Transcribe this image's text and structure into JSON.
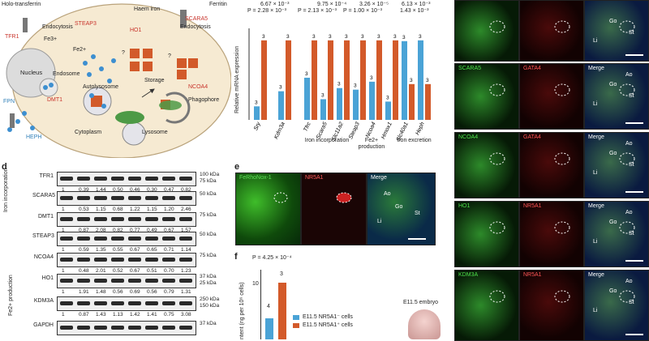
{
  "diagram": {
    "labels": {
      "holo_transferrin": "Holo-transferrin",
      "tfr1": "TFR1",
      "endocytosis_left": "Endocytosis",
      "steap3": "STEAP3",
      "fe3": "Fe3+",
      "fe2": "Fe2+",
      "haem_iron": "Haem iron",
      "ho1": "HO1",
      "scara5": "SCARA5",
      "ferritin": "Ferritin",
      "endocytosis_right": "Endocytosis",
      "nucleus": "Nucleus",
      "endosome": "Endosome",
      "dmt1": "DMT1",
      "storage": "Storage",
      "ncoa4": "NCOA4",
      "autolysosome": "Autolysosome",
      "phagophore": "Phagophore",
      "lysosome": "Lysosome",
      "cytoplasm": "Cytoplasm",
      "fpn": "FPN",
      "heph": "HEPH",
      "question": "?"
    }
  },
  "bar_chart": {
    "ylabel": "Relative mRNA expression",
    "pvalues": {
      "left": "P = 2.28 × 10⁻³",
      "left_top": "6.67 × 10⁻³",
      "mid1_top": "9.75 × 10⁻⁴",
      "mid1": "P = 2.13 × 10⁻³",
      "mid2_top": "3.26 × 10⁻⁵",
      "mid2": "P = 1.00 × 10⁻³",
      "right_top": "6.13 × 10⁻³",
      "right": "1.43 × 10⁻³"
    },
    "n_label": "3",
    "groups": {
      "iron_incorporation": "Iron incorporation",
      "fe2_production": "Fe2+ production",
      "iron_excretion": "Iron excretion"
    }
  },
  "chart_data": {
    "type": "bar",
    "categories": [
      "Sry",
      "Kdm3a",
      "Tfrc",
      "Scara5",
      "Slc11a2",
      "Steap3",
      "Ncoa4",
      "Hmox1",
      "Slc40a1",
      "Heph"
    ],
    "series": [
      {
        "values": [
          0.17,
          0.36,
          0.53,
          0.26,
          0.4,
          0.38,
          0.48,
          0.23,
          0.99,
          1.0
        ]
      },
      {
        "values": [
          1.0,
          1.0,
          1.0,
          1.0,
          1.0,
          1.0,
          1.0,
          1.0,
          0.45,
          0.45
        ]
      }
    ],
    "ylabel": "Relative mRNA expression",
    "colors": [
      "#4aa3d6",
      "#d35a2a"
    ]
  },
  "western": {
    "panel_letter": "d",
    "side_group_top": "Iron incorporation",
    "side_group_bottom": "Fe2+ production",
    "rows": [
      {
        "name": "TFR1",
        "kda": [
          "100 kDa",
          "75 kDa"
        ],
        "quant": [
          "1",
          "0.39",
          "1.44",
          "0.50",
          "0.46",
          "0.30",
          "0.47",
          "0.82"
        ]
      },
      {
        "name": "SCARA5",
        "kda": [
          "50 kDa"
        ],
        "quant": [
          "1",
          "0.53",
          "1.15",
          "0.68",
          "1.22",
          "1.15",
          "1.20",
          "2.46"
        ]
      },
      {
        "name": "DMT1",
        "kda": [
          "75 kDa"
        ],
        "quant": [
          "1",
          "0.87",
          "2.08",
          "0.82",
          "0.77",
          "0.49",
          "0.67",
          "1.57"
        ]
      },
      {
        "name": "STEAP3",
        "kda": [
          "50 kDa"
        ],
        "quant": [
          "1",
          "0.59",
          "1.35",
          "0.55",
          "0.67",
          "0.65",
          "0.71",
          "1.14"
        ]
      },
      {
        "name": "NCOA4",
        "kda": [
          "75 kDa"
        ],
        "quant": [
          "1",
          "0.48",
          "2.01",
          "0.52",
          "0.67",
          "0.51",
          "0.70",
          "1.23"
        ]
      },
      {
        "name": "HO1",
        "kda": [
          "37 kDa",
          "25 kDa"
        ],
        "quant": [
          "1",
          "1.91",
          "1.48",
          "0.56",
          "0.69",
          "0.56",
          "0.79",
          "1.31"
        ]
      },
      {
        "name": "KDM3A",
        "kda": [
          "250 kDa",
          "150 kDa"
        ],
        "quant": [
          "1",
          "0.87",
          "1.43",
          "1.13",
          "1.42",
          "1.41",
          "0.75",
          "3.08"
        ]
      },
      {
        "name": "GAPDH",
        "kda": [
          "37 kDa"
        ],
        "quant": []
      }
    ]
  },
  "panel_e": {
    "letter": "e",
    "tiles": [
      "FeRhoNox-1",
      "NR5A1",
      "Merge"
    ],
    "labels": {
      "ao": "Ao",
      "go": "Go",
      "st": "St",
      "li": "Li"
    }
  },
  "panel_f": {
    "letter": "f",
    "pvalue": "P = 4.25 × 10⁻⁴",
    "ylabel": "ntent (ng per 10⁶ cells)",
    "n_left": "4",
    "n_right": "3",
    "legend": [
      "E11.5 NR5A1⁻ cells",
      "E11.5 NR5A1⁺ cells"
    ],
    "embryo": "E11.5 embryo",
    "tick_10": "10"
  },
  "right_grid": {
    "rows": [
      {
        "green": "",
        "red": "",
        "merge": ""
      },
      {
        "green": "SCARA5",
        "red": "GATA4",
        "merge": "Merge"
      },
      {
        "green": "NCOA4",
        "red": "GATA4",
        "merge": "Merge"
      },
      {
        "green": "HO1",
        "red": "NR5A1",
        "merge": "Merge"
      },
      {
        "green": "KDM3A",
        "red": "NR5A1",
        "merge": "Merge"
      }
    ],
    "labels": {
      "ao": "Ao",
      "go": "Go",
      "st": "St",
      "li": "Li"
    }
  }
}
